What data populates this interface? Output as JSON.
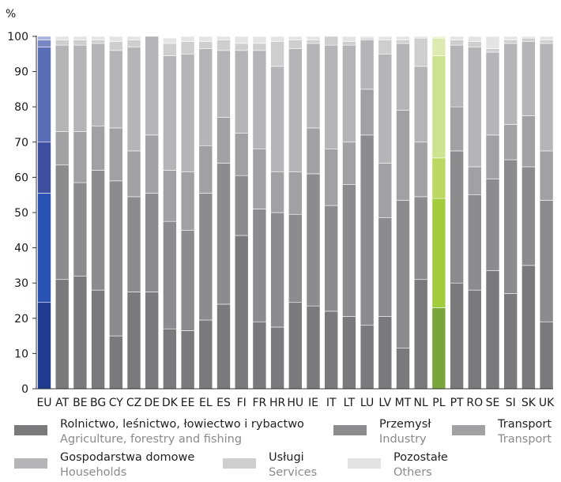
{
  "chart_data": {
    "type": "bar",
    "stacked": true,
    "unit_label": "%",
    "ylim": [
      0,
      100
    ],
    "yticks": [
      0,
      10,
      20,
      30,
      40,
      50,
      60,
      70,
      80,
      90,
      100
    ],
    "grid": false,
    "categories": [
      "EU",
      "AT",
      "BE",
      "BG",
      "CY",
      "CZ",
      "DE",
      "DK",
      "EE",
      "EL",
      "ES",
      "FI",
      "FR",
      "HR",
      "HU",
      "IE",
      "IT",
      "LT",
      "LU",
      "LV",
      "MT",
      "NL",
      "PL",
      "PT",
      "RO",
      "SE",
      "SI",
      "SK",
      "UK"
    ],
    "series": [
      {
        "name": "Rolnictwo, leśnictwo, łowiectwo i rybactwo",
        "name_en": "Agriculture, forestry and fishing",
        "values": [
          24.5,
          31,
          32,
          28,
          15,
          27.5,
          27.5,
          17,
          16.5,
          19.5,
          24,
          43.5,
          19,
          17.5,
          24.5,
          23.5,
          22,
          20.5,
          18,
          20.5,
          11.5,
          31,
          23,
          30,
          28,
          33.5,
          27,
          35,
          19
        ]
      },
      {
        "name": "Przemysł",
        "name_en": "Industry",
        "values": [
          31,
          32.5,
          26.5,
          34,
          44,
          27,
          28,
          30.5,
          28.5,
          36,
          40,
          17,
          32,
          32.5,
          25,
          37.5,
          30,
          37.5,
          54,
          28,
          42,
          23.5,
          31,
          37.5,
          27,
          26,
          38,
          28,
          34.5
        ]
      },
      {
        "name": "Transport",
        "name_en": "Transport",
        "values": [
          14.5,
          9.5,
          14.5,
          12.5,
          15,
          13,
          16.5,
          14.5,
          16.5,
          13.5,
          13,
          12,
          17,
          11.5,
          12,
          13,
          16,
          12,
          13,
          15.5,
          25.5,
          15.5,
          11.5,
          12.5,
          8,
          12.5,
          10,
          14.5,
          14
        ]
      },
      {
        "name": "Gospodarstwa domowe",
        "name_en": "Households",
        "values": [
          27,
          24.5,
          24.5,
          23.5,
          22,
          29.5,
          28,
          32.5,
          33.5,
          27.5,
          19,
          23.5,
          28,
          30,
          35,
          24,
          29.5,
          27.5,
          14,
          31,
          19,
          21.5,
          29,
          17.5,
          34,
          23.5,
          23,
          21,
          30.5
        ]
      },
      {
        "name": "Usługi",
        "name_en": "Services",
        "values": [
          2,
          1.5,
          1.5,
          1,
          2.5,
          2,
          0,
          3.5,
          3.5,
          2,
          3,
          2,
          2,
          7,
          2.5,
          1,
          2.5,
          1,
          0.5,
          4,
          1,
          8,
          5,
          1.5,
          1.5,
          1,
          1,
          1,
          1
        ]
      },
      {
        "name": "Pozostałe",
        "name_en": "Others",
        "values": [
          1,
          1,
          1,
          1,
          1.5,
          1,
          0,
          1.5,
          1.5,
          1.5,
          1,
          2,
          2,
          1.5,
          1,
          1,
          0,
          1.5,
          0.5,
          1,
          1,
          0.5,
          0.5,
          1,
          1.5,
          3.5,
          1,
          0.5,
          1
        ]
      }
    ],
    "highlight": {
      "EU": [
        "#1f3a8f",
        "#2b52b5",
        "#3d4f9e",
        "#5a6eb8",
        "#7a86c4",
        "#a8b2dc"
      ],
      "PL": [
        "#7aa53a",
        "#a3cc3c",
        "#bcd861",
        "#cee38f",
        "#ddeab0",
        "#eaf3d2"
      ]
    },
    "default_colors": [
      "#7a7a7c",
      "#8c8c8e",
      "#a1a1a3",
      "#b5b5b8",
      "#cececf",
      "#e4e4e5"
    ],
    "legend_position": "bottom"
  }
}
